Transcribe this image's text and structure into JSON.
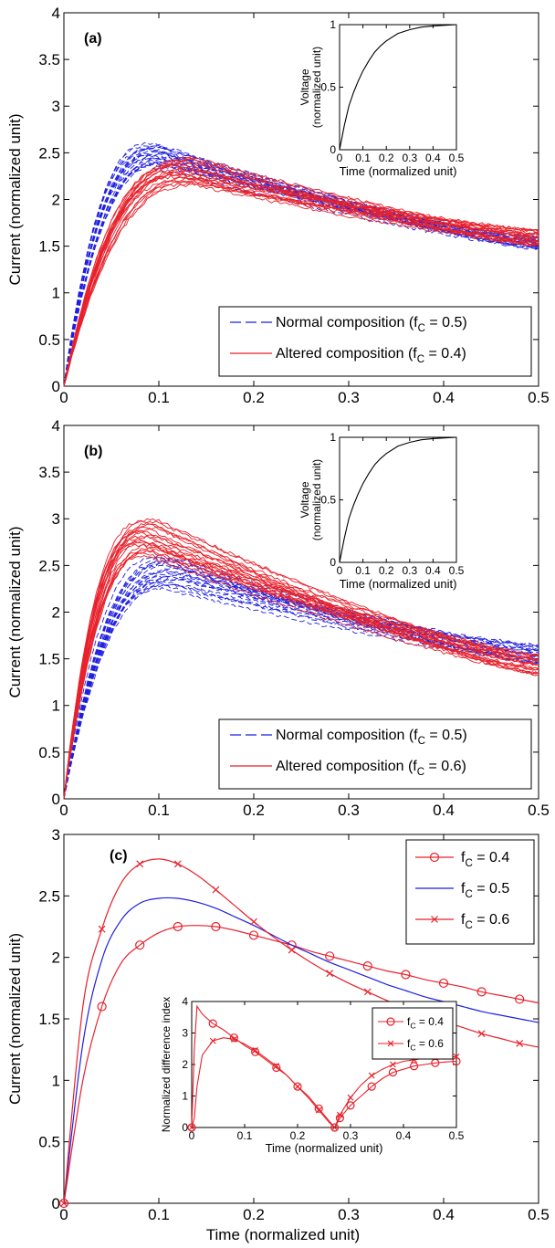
{
  "colors": {
    "normal": "#1f1fe0",
    "altered": "#e8212b",
    "axis": "#000000"
  },
  "chart_data": [
    {
      "id": "a",
      "type": "line",
      "panel_label": "(a)",
      "xlabel": "",
      "ylabel": "Current (normalized unit)",
      "xlim": [
        0,
        0.5
      ],
      "ylim": [
        0,
        4
      ],
      "x_ticks": [
        "0",
        "0.1",
        "0.2",
        "0.3",
        "0.4",
        "0.5"
      ],
      "y_ticks": [
        "0",
        "0.5",
        "1",
        "1.5",
        "2",
        "2.5",
        "3",
        "3.5",
        "4"
      ],
      "legend": [
        "Normal composition (fC = 0.5)",
        "Altered composition (fC = 0.4)"
      ],
      "legend_placement": "bottom-right",
      "grid": false,
      "series": [
        {
          "name": "Normal composition (fC = 0.5)",
          "style": "dashed",
          "color": "normal",
          "count": 20,
          "peak_range": [
            2.35,
            2.6
          ],
          "peak_x": 0.1,
          "end_range": [
            1.45,
            1.6
          ]
        },
        {
          "name": "Altered composition (fC = 0.4)",
          "style": "solid",
          "color": "altered",
          "count": 20,
          "peak_range": [
            2.15,
            2.45
          ],
          "peak_x": 0.13,
          "end_range": [
            1.48,
            1.68
          ]
        }
      ],
      "inset": {
        "type": "line",
        "xlabel": "Time (normalized unit)",
        "ylabel": "Voltage (normalized unit)",
        "xlim": [
          0,
          0.5
        ],
        "ylim": [
          0,
          1
        ],
        "x_ticks": [
          "0",
          "0.1",
          "0.2",
          "0.3",
          "0.4",
          "0.5"
        ],
        "y_ticks": [
          "0",
          "0.5",
          "1"
        ],
        "x": [
          0,
          0.02,
          0.04,
          0.06,
          0.08,
          0.1,
          0.125,
          0.15,
          0.175,
          0.2,
          0.25,
          0.3,
          0.35,
          0.4,
          0.45,
          0.5
        ],
        "y": [
          0,
          0.19,
          0.35,
          0.46,
          0.55,
          0.63,
          0.71,
          0.78,
          0.83,
          0.87,
          0.93,
          0.96,
          0.98,
          0.99,
          0.995,
          1.0
        ]
      }
    },
    {
      "id": "b",
      "type": "line",
      "panel_label": "(b)",
      "xlabel": "",
      "ylabel": "Current (normalized unit)",
      "xlim": [
        0,
        0.5
      ],
      "ylim": [
        0,
        4
      ],
      "x_ticks": [
        "0",
        "0.1",
        "0.2",
        "0.3",
        "0.4",
        "0.5"
      ],
      "y_ticks": [
        "0",
        "0.5",
        "1",
        "1.5",
        "2",
        "2.5",
        "3",
        "3.5",
        "4"
      ],
      "legend": [
        "Normal composition (fC = 0.5)",
        "Altered composition (fC = 0.6)"
      ],
      "legend_placement": "bottom-right",
      "grid": false,
      "series": [
        {
          "name": "Normal composition (fC = 0.5)",
          "style": "dashed",
          "color": "normal",
          "count": 20,
          "peak_range": [
            2.25,
            2.6
          ],
          "peak_x": 0.11,
          "end_range": [
            1.42,
            1.65
          ]
        },
        {
          "name": "Altered composition (fC = 0.6)",
          "style": "solid",
          "color": "altered",
          "count": 20,
          "peak_range": [
            2.6,
            3.0
          ],
          "peak_x": 0.09,
          "end_range": [
            1.3,
            1.55
          ]
        }
      ],
      "inset": {
        "type": "line",
        "xlabel": "Time (normalized unit)",
        "ylabel": "Voltage (normalized unit)",
        "xlim": [
          0,
          0.5
        ],
        "ylim": [
          0,
          1
        ],
        "x_ticks": [
          "0",
          "0.1",
          "0.2",
          "0.3",
          "0.4",
          "0.5"
        ],
        "y_ticks": [
          "0",
          "0.5",
          "1"
        ],
        "x": [
          0,
          0.02,
          0.04,
          0.06,
          0.08,
          0.1,
          0.125,
          0.15,
          0.175,
          0.2,
          0.25,
          0.3,
          0.35,
          0.4,
          0.45,
          0.5
        ],
        "y": [
          0,
          0.19,
          0.35,
          0.46,
          0.55,
          0.63,
          0.71,
          0.78,
          0.83,
          0.87,
          0.93,
          0.96,
          0.98,
          0.99,
          0.995,
          1.0
        ]
      }
    },
    {
      "id": "c",
      "type": "line",
      "panel_label": "(c)",
      "xlabel": "Time (normalized unit)",
      "ylabel": "Current (normalized unit)",
      "xlim": [
        0,
        0.5
      ],
      "ylim": [
        0,
        3
      ],
      "x_ticks": [
        "0",
        "0.1",
        "0.2",
        "0.3",
        "0.4",
        "0.5"
      ],
      "y_ticks": [
        "0",
        "0.5",
        "1",
        "1.5",
        "2",
        "2.5",
        "3"
      ],
      "legend_placement": "top-right",
      "grid": false,
      "x": [
        0,
        0.02,
        0.04,
        0.06,
        0.08,
        0.1,
        0.12,
        0.14,
        0.16,
        0.18,
        0.2,
        0.22,
        0.24,
        0.26,
        0.28,
        0.3,
        0.32,
        0.34,
        0.36,
        0.38,
        0.4,
        0.42,
        0.44,
        0.46,
        0.48,
        0.5
      ],
      "series": [
        {
          "name": "fC = 0.4",
          "marker": "circle",
          "color": "altered",
          "y": [
            0,
            1.0,
            1.6,
            1.95,
            2.1,
            2.2,
            2.25,
            2.26,
            2.25,
            2.22,
            2.18,
            2.14,
            2.1,
            2.05,
            2.01,
            1.97,
            1.93,
            1.89,
            1.86,
            1.82,
            1.79,
            1.76,
            1.72,
            1.69,
            1.66,
            1.63
          ]
        },
        {
          "name": "fC = 0.5",
          "marker": "none",
          "color": "normal",
          "y": [
            0,
            1.3,
            1.98,
            2.3,
            2.44,
            2.48,
            2.48,
            2.45,
            2.4,
            2.33,
            2.26,
            2.18,
            2.1,
            2.03,
            1.96,
            1.9,
            1.84,
            1.78,
            1.73,
            1.68,
            1.64,
            1.6,
            1.56,
            1.53,
            1.5,
            1.47
          ]
        },
        {
          "name": "fC = 0.6",
          "marker": "x",
          "color": "altered",
          "y": [
            0,
            1.6,
            2.23,
            2.6,
            2.76,
            2.8,
            2.76,
            2.67,
            2.55,
            2.42,
            2.29,
            2.17,
            2.06,
            1.96,
            1.87,
            1.79,
            1.72,
            1.65,
            1.59,
            1.53,
            1.48,
            1.43,
            1.38,
            1.34,
            1.3,
            1.27
          ]
        }
      ],
      "inset": {
        "type": "line",
        "xlabel": "Time (normalized unit)",
        "ylabel": "Normalized difference index",
        "xlim": [
          0,
          0.5
        ],
        "ylim": [
          0,
          4
        ],
        "x_ticks": [
          "0",
          "0.1",
          "0.2",
          "0.3",
          "0.4",
          "0.5"
        ],
        "y_ticks": [
          "0",
          "1",
          "2",
          "3",
          "4"
        ],
        "legend_placement": "top-right",
        "series": [
          {
            "name": "fC = 0.4",
            "marker": "circle",
            "color": "altered",
            "x": [
              0,
              0.005,
              0.01,
              0.02,
              0.04,
              0.06,
              0.08,
              0.1,
              0.12,
              0.14,
              0.16,
              0.18,
              0.2,
              0.22,
              0.24,
              0.26,
              0.27,
              0.28,
              0.3,
              0.32,
              0.34,
              0.36,
              0.38,
              0.4,
              0.42,
              0.44,
              0.46,
              0.48,
              0.5
            ],
            "y": [
              0,
              2.5,
              3.85,
              3.6,
              3.3,
              3.1,
              2.85,
              2.6,
              2.4,
              2.15,
              1.9,
              1.65,
              1.3,
              1.0,
              0.6,
              0.2,
              0.0,
              0.3,
              0.7,
              1.0,
              1.3,
              1.55,
              1.75,
              1.85,
              1.95,
              2.0,
              2.05,
              2.08,
              2.1
            ]
          },
          {
            "name": "fC = 0.6",
            "marker": "x",
            "color": "altered",
            "x": [
              0,
              0.005,
              0.01,
              0.02,
              0.04,
              0.06,
              0.08,
              0.1,
              0.12,
              0.14,
              0.16,
              0.18,
              0.2,
              0.22,
              0.24,
              0.26,
              0.27,
              0.28,
              0.3,
              0.32,
              0.34,
              0.36,
              0.38,
              0.4,
              0.42,
              0.44,
              0.46,
              0.48,
              0.5
            ],
            "y": [
              0,
              0.3,
              1.3,
              2.3,
              2.75,
              2.85,
              2.8,
              2.65,
              2.45,
              2.2,
              1.95,
              1.65,
              1.3,
              0.95,
              0.55,
              0.15,
              0.0,
              0.4,
              0.95,
              1.35,
              1.65,
              1.85,
              2.0,
              2.1,
              2.15,
              2.2,
              2.22,
              2.24,
              2.25
            ]
          }
        ]
      }
    }
  ]
}
